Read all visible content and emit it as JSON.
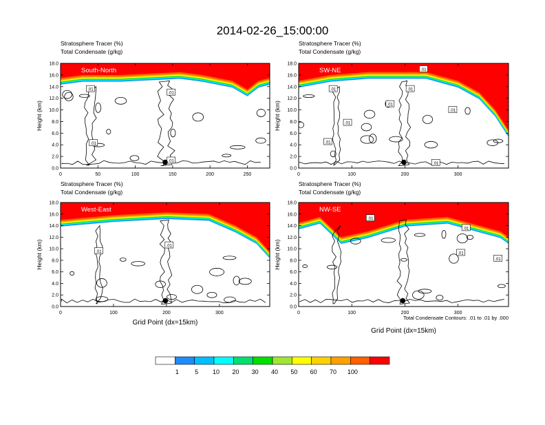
{
  "figure": {
    "title": "2014-02-26_15:00:00",
    "contour_note": "Total Condensate Contours: .01 to .01 by .000",
    "colorbar": {
      "labels": [
        "1",
        "5",
        "10",
        "20",
        "30",
        "40",
        "50",
        "60",
        "70",
        "100"
      ],
      "colors": [
        "#ffffff",
        "#1e8cff",
        "#00bfff",
        "#00ffff",
        "#00e070",
        "#00e000",
        "#a0e632",
        "#ffff00",
        "#ffd000",
        "#ffa000",
        "#ff6000",
        "#ff0000"
      ]
    }
  },
  "chart_data": [
    {
      "type": "contour",
      "label": "South-North",
      "line1": "Stratosphere Tracer   (%)",
      "line2": "Total Condensate   (g/kg)",
      "ylabel": "Height (km)",
      "xlabel": "",
      "ylim": [
        0,
        18
      ],
      "yticks": [
        "0.0",
        "2.0",
        "4.0",
        "6.0",
        "8.0",
        "10.0",
        "12.0",
        "14.0",
        "16.0",
        "18.0"
      ],
      "xlim": [
        0,
        280
      ],
      "xticks": [
        0,
        50,
        100,
        150,
        200,
        250
      ],
      "contour_labels": [
        {
          "text": ".01",
          "x": 40,
          "y": 13.6
        },
        {
          "text": ".01",
          "x": 148,
          "y": 13.0
        },
        {
          "text": ".01",
          "x": 44,
          "y": 4.3
        },
        {
          "text": ".01",
          "x": 148,
          "y": 1.3
        }
      ],
      "marker": {
        "x": 140,
        "y": 1.0
      },
      "tracer_bottom": [
        [
          0,
          15.5
        ],
        [
          30,
          16.0
        ],
        [
          80,
          16.0
        ],
        [
          160,
          16.5
        ],
        [
          190,
          16.0
        ],
        [
          230,
          15.0
        ],
        [
          250,
          13.5
        ],
        [
          265,
          15.0
        ],
        [
          280,
          15.5
        ]
      ]
    },
    {
      "type": "contour",
      "label": "SW-NE",
      "line1": "Stratosphere Tracer   (%)",
      "line2": "Total Condensate   (g/kg)",
      "ylabel": "Height (km)",
      "xlabel": "",
      "ylim": [
        0,
        18
      ],
      "yticks": [
        "0.0",
        "2.0",
        "4.0",
        "6.0",
        "8.0",
        "10.0",
        "12.0",
        "14.0",
        "16.0",
        "18.0"
      ],
      "xlim": [
        0,
        395
      ],
      "xticks": [
        0,
        100,
        200,
        300
      ],
      "contour_labels": [
        {
          "text": ".01",
          "x": 235,
          "y": 17.0
        },
        {
          "text": ".01",
          "x": 65,
          "y": 13.6
        },
        {
          "text": ".01",
          "x": 210,
          "y": 13.6
        },
        {
          "text": ".01",
          "x": 172,
          "y": 11.0
        },
        {
          "text": ".01",
          "x": 290,
          "y": 10.0
        },
        {
          "text": ".01",
          "x": 92,
          "y": 7.8
        },
        {
          "text": ".01",
          "x": 55,
          "y": 4.5
        },
        {
          "text": ".01",
          "x": 258,
          "y": 0.9
        }
      ],
      "marker": {
        "x": 198,
        "y": 1.0
      },
      "tracer_bottom": [
        [
          0,
          15.0
        ],
        [
          60,
          16.0
        ],
        [
          130,
          16.5
        ],
        [
          240,
          16.5
        ],
        [
          300,
          15.0
        ],
        [
          340,
          13.0
        ],
        [
          370,
          10.0
        ],
        [
          395,
          6.5
        ]
      ]
    },
    {
      "type": "contour",
      "label": "West-East",
      "line1": "Stratosphere Tracer   (%)",
      "line2": "Total Condensate   (g/kg)",
      "ylabel": "Height (km)",
      "xlabel": "Grid Point (dx=15km)",
      "ylim": [
        0,
        18
      ],
      "yticks": [
        "0.0",
        "2.0",
        "4.0",
        "6.0",
        "8.0",
        "10.0",
        "12.0",
        "14.0",
        "16.0",
        "18.0"
      ],
      "xlim": [
        0,
        395
      ],
      "xticks": [
        0,
        100,
        200,
        300
      ],
      "contour_labels": [
        {
          "text": ".01",
          "x": 72,
          "y": 9.6
        },
        {
          "text": ".01",
          "x": 205,
          "y": 10.6
        }
      ],
      "marker": {
        "x": 198,
        "y": 1.0
      },
      "tracer_bottom": [
        [
          0,
          15.0
        ],
        [
          100,
          15.8
        ],
        [
          200,
          16.3
        ],
        [
          280,
          16.0
        ],
        [
          330,
          14.0
        ],
        [
          370,
          12.0
        ],
        [
          395,
          9.5
        ]
      ]
    },
    {
      "type": "contour",
      "label": "NW-SE",
      "line1": "Stratosphere Tracer   (%)",
      "line2": "Total Condensate   (g/kg)",
      "ylabel": "Height (km)",
      "xlabel": "Grid Point (dx=15km)",
      "ylim": [
        0,
        18
      ],
      "yticks": [
        "0.0",
        "2.0",
        "4.0",
        "6.0",
        "8.0",
        "10.0",
        "12.0",
        "14.0",
        "16.0",
        "18.0"
      ],
      "xlim": [
        0,
        395
      ],
      "xticks": [
        0,
        100,
        200,
        300
      ],
      "contour_labels": [
        {
          "text": ".01",
          "x": 135,
          "y": 15.3
        },
        {
          "text": ".01",
          "x": 315,
          "y": 13.6
        },
        {
          "text": ".01",
          "x": 305,
          "y": 9.3
        },
        {
          "text": ".01",
          "x": 375,
          "y": 8.3
        }
      ],
      "marker": {
        "x": 196,
        "y": 1.0
      },
      "tracer_bottom": [
        [
          0,
          14.5
        ],
        [
          40,
          15.5
        ],
        [
          80,
          12.0
        ],
        [
          130,
          13.0
        ],
        [
          200,
          15.0
        ],
        [
          280,
          15.5
        ],
        [
          340,
          14.0
        ],
        [
          380,
          13.0
        ],
        [
          395,
          12.0
        ]
      ]
    }
  ]
}
